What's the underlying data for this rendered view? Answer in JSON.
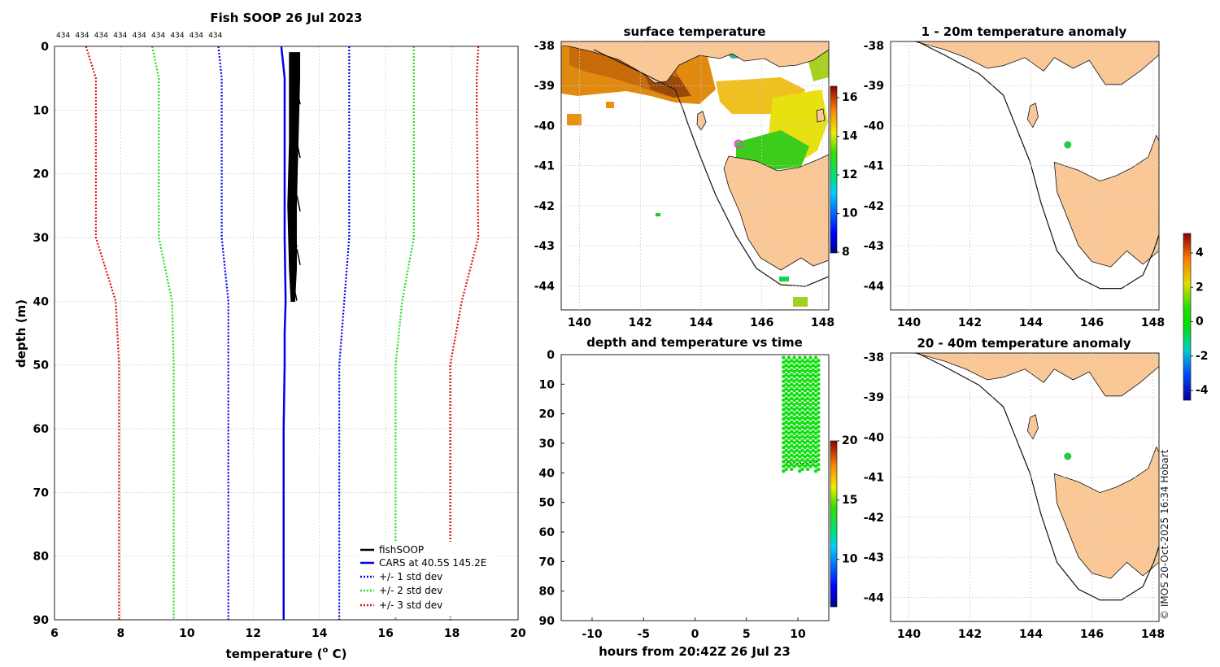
{
  "colors": {
    "land": "#f9c896",
    "coast": "#111111",
    "fish": "#000000",
    "cars": "#0000ee",
    "sd1": "#0000ee",
    "sd2": "#22dd22",
    "sd3": "#dd1111",
    "point": "#00cc00",
    "marker": "#e040e0"
  },
  "profile": {
    "title": "Fish SOOP 26 Jul 2023",
    "count_labels": [
      "434",
      "434",
      "434",
      "434",
      "434",
      "434",
      "434",
      "434",
      "434"
    ],
    "xlabel": "temperature",
    "xlabel_unit": "(",
    "xlabel_sup": "o",
    "xlabel_unit2": " C)",
    "ylabel": "depth (m)",
    "legend": [
      "fishSOOP",
      "CARS at 40.5S 145.2E",
      "+/- 1 std dev",
      "+/- 2 std dev",
      "+/- 3 std dev"
    ]
  },
  "maps": {
    "sst": {
      "title": "surface temperature",
      "cbar_ticks": [
        "8",
        "10",
        "12",
        "14",
        "16"
      ]
    },
    "anom1": {
      "title": "1 - 20m temperature anomaly"
    },
    "anom2": {
      "title": "20 - 40m temperature anomaly"
    },
    "anom_cbar_ticks": [
      "-4",
      "-2",
      "0",
      "2",
      "4"
    ],
    "lat_ticks": [
      "-38",
      "-39",
      "-40",
      "-41",
      "-42",
      "-43",
      "-44"
    ],
    "lon_ticks": [
      "140",
      "142",
      "144",
      "146",
      "148"
    ]
  },
  "time_panel": {
    "title": "depth and temperature vs time",
    "xlabel": "hours from 20:42Z 26 Jul 23",
    "cbar_ticks": [
      "10",
      "15",
      "20"
    ]
  },
  "credit": "© IMOS 20-Oct-2025 16:34 Hobart",
  "chart_data": [
    {
      "type": "line",
      "title": "Fish SOOP 26 Jul 2023",
      "xlabel": "temperature (o C)",
      "ylabel": "depth (m)",
      "xlim": [
        6,
        20
      ],
      "ylim": [
        90,
        0
      ],
      "xticks": [
        6,
        8,
        10,
        12,
        14,
        16,
        18,
        20
      ],
      "yticks": [
        0,
        10,
        20,
        30,
        40,
        50,
        60,
        70,
        80,
        90
      ],
      "series": [
        {
          "name": "CARS at 40.5S 145.2E",
          "style": "solid",
          "color": "#0000ee",
          "x": [
            12.85,
            12.95,
            12.95,
            12.95,
            12.98,
            12.95,
            12.95,
            12.92,
            12.92
          ],
          "y": [
            0,
            5,
            10,
            30,
            40,
            45,
            50,
            60,
            90
          ]
        },
        {
          "name": "CARS -1 std dev",
          "style": "dotted",
          "color": "#0000ee",
          "x": [
            10.95,
            11.05,
            11.05,
            11.05,
            11.25,
            11.25,
            11.25
          ],
          "y": [
            0,
            5,
            10,
            30,
            40,
            50,
            90
          ]
        },
        {
          "name": "CARS +1 std dev",
          "style": "dotted",
          "color": "#0000ee",
          "x": [
            14.9,
            14.9,
            14.9,
            14.9,
            14.75,
            14.6,
            14.6
          ],
          "y": [
            0,
            5,
            10,
            30,
            40,
            50,
            90
          ]
        },
        {
          "name": "CARS -2 std dev",
          "style": "dotted",
          "color": "#22dd22",
          "x": [
            8.95,
            9.15,
            9.15,
            9.15,
            9.55,
            9.6,
            9.6
          ],
          "y": [
            0,
            5,
            10,
            30,
            40,
            50,
            90
          ]
        },
        {
          "name": "CARS +2 std dev",
          "style": "dotted",
          "color": "#22dd22",
          "x": [
            16.85,
            16.85,
            16.85,
            16.85,
            16.5,
            16.3,
            16.3
          ],
          "y": [
            0,
            5,
            10,
            30,
            40,
            50,
            90
          ]
        },
        {
          "name": "CARS -3 std dev",
          "style": "dotted",
          "color": "#dd1111",
          "x": [
            6.95,
            7.25,
            7.25,
            7.25,
            7.85,
            7.95,
            7.95
          ],
          "y": [
            0,
            5,
            10,
            30,
            40,
            50,
            90
          ]
        },
        {
          "name": "CARS +3 std dev",
          "style": "dotted",
          "color": "#dd1111",
          "x": [
            18.8,
            18.75,
            18.75,
            18.8,
            18.3,
            17.95,
            17.95
          ],
          "y": [
            0,
            5,
            10,
            30,
            40,
            50,
            90
          ]
        }
      ],
      "fish_band": {
        "name": "fishSOOP",
        "tmin": [
          13.1,
          13.1,
          13.1,
          13.05,
          13.1,
          13.15
        ],
        "tmax": [
          13.4,
          13.4,
          13.35,
          13.3,
          13.3,
          13.25
        ],
        "depth": [
          1,
          5,
          15,
          25,
          35,
          40
        ]
      }
    },
    {
      "type": "scatter",
      "title": "depth and temperature vs time",
      "xlabel": "hours from 20:42Z 26 Jul 23",
      "xlim": [
        -13,
        13
      ],
      "ylim": [
        90,
        0
      ],
      "xticks": [
        -10,
        -5,
        0,
        5,
        10
      ],
      "yticks": [
        0,
        10,
        20,
        30,
        40,
        50,
        60,
        70,
        80,
        90
      ],
      "color_range": [
        6,
        20
      ],
      "points_summary": {
        "hours_range": [
          8.6,
          12.0
        ],
        "depth_range": [
          1,
          40
        ],
        "temperature": 13.2
      }
    }
  ]
}
